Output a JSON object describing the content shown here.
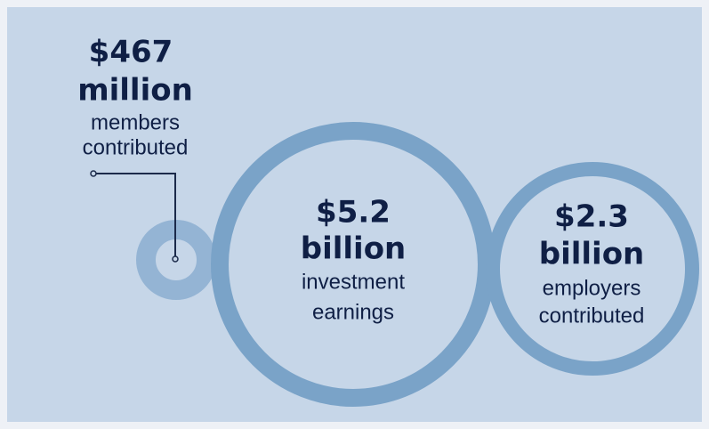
{
  "items": [
    {
      "amount": "$467",
      "unit": "million",
      "label": [
        "members",
        "contributed"
      ]
    },
    {
      "amount": "$5.2",
      "unit": "billion",
      "label": [
        "investment",
        "earnings"
      ]
    },
    {
      "amount": "$2.3",
      "unit": "billion",
      "label": [
        "employers",
        "contributed"
      ]
    }
  ]
}
